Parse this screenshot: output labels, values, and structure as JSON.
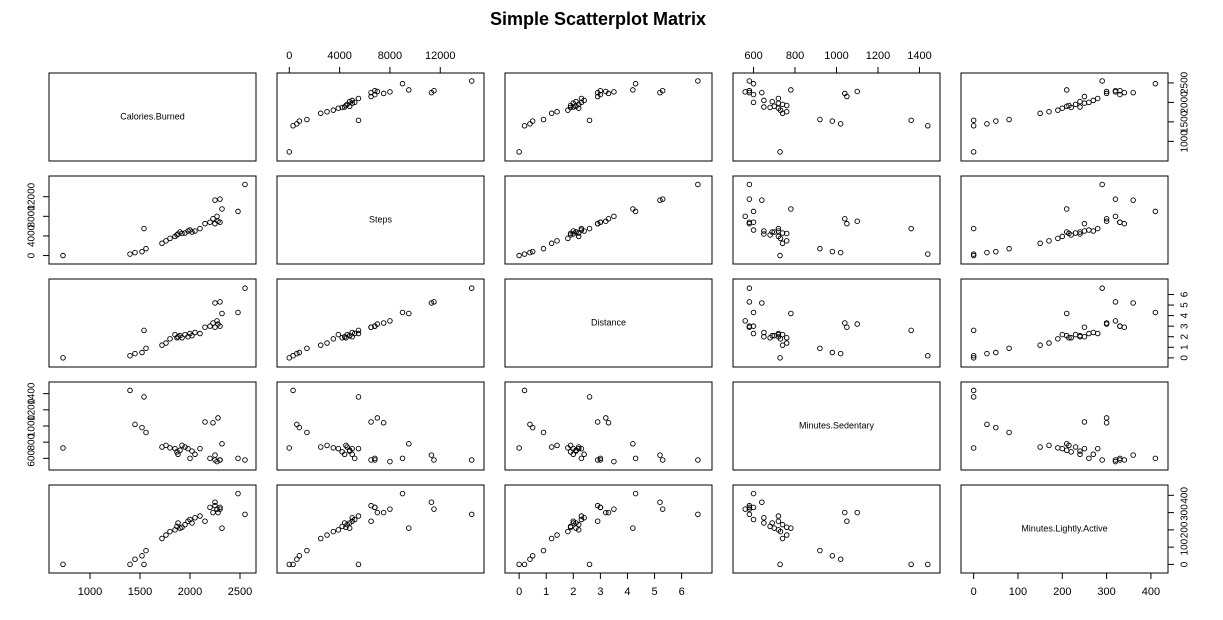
{
  "chart_data": {
    "type": "scatter_matrix",
    "title": "Simple Scatterplot Matrix",
    "color": "#000000",
    "variables": [
      {
        "name": "Calories.Burned",
        "lim": [
          650,
          2600
        ],
        "ticks": [
          1000,
          1500,
          2000,
          2500
        ],
        "values": [
          730,
          1400,
          1450,
          1520,
          1560,
          1540,
          1720,
          1760,
          1800,
          1850,
          1870,
          1880,
          1900,
          1920,
          1950,
          1980,
          2000,
          2020,
          2050,
          2100,
          2150,
          2200,
          2230,
          2250,
          2270,
          2280,
          2300,
          2320,
          2250,
          2300,
          2550,
          2480
        ]
      },
      {
        "name": "Steps",
        "lim": [
          -500,
          15000
        ],
        "ticks": [
          0,
          4000,
          8000,
          12000
        ],
        "values": [
          0,
          300,
          600,
          800,
          1400,
          5500,
          2500,
          3000,
          3500,
          3900,
          4200,
          4400,
          4800,
          4500,
          4600,
          5000,
          5200,
          4800,
          5000,
          5500,
          6500,
          6800,
          7500,
          6500,
          8000,
          7000,
          6800,
          9500,
          11300,
          11500,
          14500,
          9000
        ]
      },
      {
        "name": "Distance",
        "lim": [
          -0.3,
          6.9
        ],
        "ticks": [
          0,
          1,
          2,
          3,
          4,
          5,
          6
        ],
        "values": [
          0,
          0.2,
          0.4,
          0.5,
          0.9,
          2.6,
          1.2,
          1.4,
          1.8,
          2.2,
          1.9,
          2.0,
          2.1,
          1.9,
          2.2,
          2.0,
          2.3,
          2.1,
          2.4,
          2.3,
          2.9,
          3.0,
          3.3,
          2.9,
          3.5,
          3.2,
          3.0,
          4.2,
          5.2,
          5.3,
          6.6,
          4.3
        ]
      },
      {
        "name": "Minutes.Sedentary",
        "lim": [
          530,
          1470
        ],
        "ticks": [
          600,
          800,
          1000,
          1200,
          1400
        ],
        "values": [
          728,
          1440,
          1020,
          980,
          920,
          1360,
          740,
          760,
          730,
          720,
          680,
          650,
          700,
          760,
          740,
          720,
          600,
          690,
          650,
          720,
          1050,
          600,
          1040,
          580,
          560,
          1100,
          580,
          780,
          640,
          580,
          580,
          600
        ]
      },
      {
        "name": "Minutes.Lightly.Active",
        "lim": [
          -15,
          425
        ],
        "ticks": [
          0,
          100,
          200,
          300,
          400
        ],
        "values": [
          0,
          0,
          30,
          50,
          80,
          0,
          150,
          170,
          190,
          200,
          220,
          240,
          210,
          215,
          230,
          250,
          260,
          240,
          270,
          280,
          250,
          330,
          300,
          340,
          320,
          300,
          330,
          210,
          360,
          320,
          290,
          410
        ]
      }
    ]
  }
}
